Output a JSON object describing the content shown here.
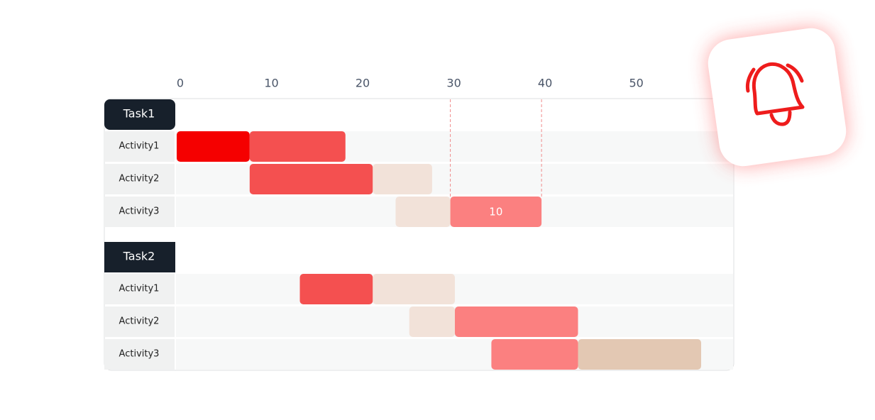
{
  "chart_data": {
    "type": "gantt",
    "xlim": [
      0,
      61
    ],
    "xticks": [
      0,
      10,
      20,
      30,
      40,
      50
    ],
    "groups": [
      {
        "name": "Task1",
        "rows": [
          {
            "name": "Activity1",
            "segments": [
              {
                "start": 0,
                "end": 8,
                "color": "#f50000"
              },
              {
                "start": 8,
                "end": 18.5,
                "color": "#f45050"
              }
            ]
          },
          {
            "name": "Activity2",
            "segments": [
              {
                "start": 8,
                "end": 21.5,
                "color": "#f45050"
              },
              {
                "start": 21.5,
                "end": 28,
                "color": "#f2e2d9"
              }
            ]
          },
          {
            "name": "Activity3",
            "segments": [
              {
                "start": 24,
                "end": 30,
                "color": "#f2e2d9"
              },
              {
                "start": 30,
                "end": 40,
                "color": "#fb8080",
                "label": "10"
              }
            ]
          }
        ]
      },
      {
        "name": "Task2",
        "rows": [
          {
            "name": "Activity1",
            "segments": [
              {
                "start": 13.5,
                "end": 21.5,
                "color": "#f45050"
              },
              {
                "start": 21.5,
                "end": 30.5,
                "color": "#f2e2d9"
              }
            ]
          },
          {
            "name": "Activity2",
            "segments": [
              {
                "start": 25.5,
                "end": 30.5,
                "color": "#f2e2d9"
              },
              {
                "start": 30.5,
                "end": 44,
                "color": "#fb8080"
              }
            ]
          },
          {
            "name": "Activity3",
            "segments": [
              {
                "start": 34.5,
                "end": 44,
                "color": "#fb8080"
              },
              {
                "start": 44,
                "end": 57.5,
                "color": "#e3c8b3"
              }
            ]
          }
        ]
      }
    ]
  }
}
